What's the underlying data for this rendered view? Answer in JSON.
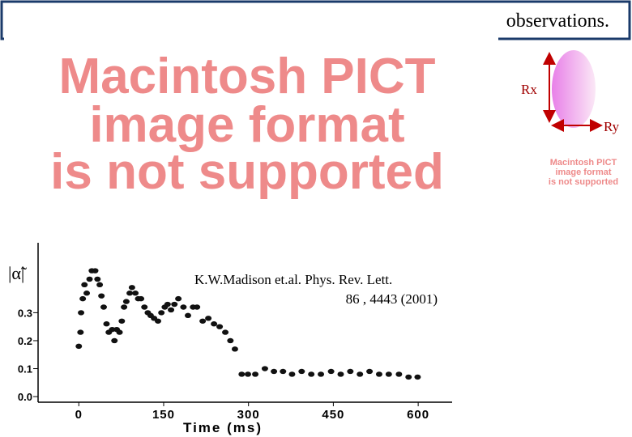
{
  "slide": {
    "banner": "observations.",
    "placeholder_large": [
      "Macintosh PICT",
      "image format",
      "is not supported"
    ],
    "rx_label": "Rx",
    "ry_label": "Ry",
    "placeholder_small": [
      "Macintosh PICT",
      "image format",
      "is not supported"
    ],
    "citation": [
      "K.W.Madison et.al. Phys. Rev. Lett.",
      "86 , 4443 (2001)"
    ]
  },
  "chart_data": {
    "type": "scatter",
    "x_label": "Time (ms)",
    "y_label": "|α̃|",
    "color": "#111111",
    "x": [
      0,
      3,
      4,
      7,
      10,
      14,
      19,
      23,
      29,
      33,
      37,
      40,
      44,
      49,
      53,
      59,
      63,
      67,
      72,
      76,
      80,
      84,
      90,
      94,
      100,
      105,
      110,
      116,
      122,
      127,
      133,
      140,
      146,
      152,
      157,
      163,
      169,
      176,
      185,
      193,
      202,
      209,
      219,
      229,
      239,
      249,
      259,
      268,
      276,
      288,
      299,
      312,
      329,
      345,
      361,
      377,
      394,
      411,
      428,
      446,
      463,
      480,
      497,
      514,
      531,
      548,
      566,
      583,
      599
    ],
    "values": [
      0.18,
      0.23,
      0.3,
      0.35,
      0.4,
      0.37,
      0.42,
      0.45,
      0.45,
      0.42,
      0.4,
      0.36,
      0.32,
      0.26,
      0.23,
      0.24,
      0.2,
      0.24,
      0.23,
      0.27,
      0.32,
      0.34,
      0.37,
      0.39,
      0.37,
      0.35,
      0.35,
      0.32,
      0.3,
      0.29,
      0.28,
      0.27,
      0.3,
      0.32,
      0.33,
      0.31,
      0.33,
      0.35,
      0.32,
      0.29,
      0.32,
      0.32,
      0.27,
      0.28,
      0.26,
      0.25,
      0.23,
      0.2,
      0.17,
      0.08,
      0.08,
      0.08,
      0.1,
      0.09,
      0.09,
      0.08,
      0.09,
      0.08,
      0.08,
      0.09,
      0.08,
      0.09,
      0.08,
      0.09,
      0.08,
      0.08,
      0.08,
      0.07,
      0.07
    ],
    "xlim": [
      -72,
      660
    ],
    "ylim": [
      -0.02,
      0.55
    ],
    "xticks": [
      0,
      150,
      300,
      450,
      600
    ],
    "yticks": [
      {
        "value": 0,
        "label": "0.0"
      },
      0.1,
      0.2,
      0.3
    ]
  }
}
